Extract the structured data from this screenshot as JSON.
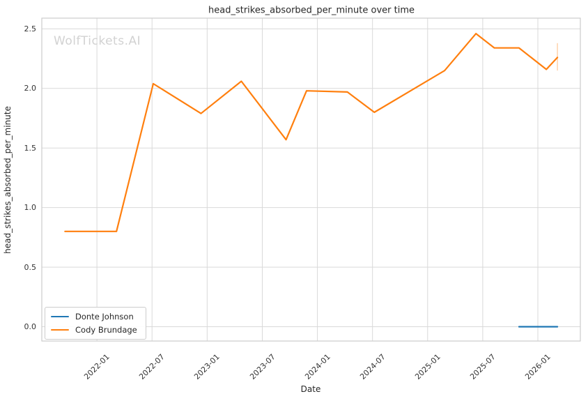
{
  "chart_data": {
    "type": "line",
    "title": "head_strikes_absorbed_per_minute over time",
    "xlabel": "Date",
    "ylabel": "head_strikes_absorbed_per_minute",
    "watermark": "WolfTickets.AI",
    "grid": true,
    "legend_position": "lower-left",
    "x_ticks": [
      "2022-01",
      "2022-07",
      "2023-01",
      "2023-07",
      "2024-01",
      "2024-07",
      "2025-01",
      "2025-07",
      "2026-01"
    ],
    "y_ticks": [
      0.0,
      0.5,
      1.0,
      1.5,
      2.0,
      2.5
    ],
    "y_tick_labels": [
      "0.0",
      "0.5",
      "1.0",
      "1.5",
      "2.0",
      "2.5"
    ],
    "xlim": [
      "2021-07-01",
      "2026-05-20"
    ],
    "ylim": [
      -0.12,
      2.59
    ],
    "series": [
      {
        "name": "Donte Johnson",
        "color": "#1f77b4",
        "points": [
          {
            "date": "2025-10-30",
            "value": 0.0
          },
          {
            "date": "2026-03-05",
            "value": 0.0
          }
        ]
      },
      {
        "name": "Cody Brundage",
        "color": "#ff7f0e",
        "points": [
          {
            "date": "2021-09-17",
            "value": 0.8
          },
          {
            "date": "2022-03-05",
            "value": 0.8
          },
          {
            "date": "2022-07-05",
            "value": 2.04
          },
          {
            "date": "2022-12-11",
            "value": 1.79
          },
          {
            "date": "2023-04-23",
            "value": 2.06
          },
          {
            "date": "2023-09-19",
            "value": 1.57
          },
          {
            "date": "2023-11-26",
            "value": 1.98
          },
          {
            "date": "2024-04-09",
            "value": 1.97
          },
          {
            "date": "2024-07-07",
            "value": 1.8
          },
          {
            "date": "2025-02-27",
            "value": 2.15
          },
          {
            "date": "2025-06-09",
            "value": 2.46
          },
          {
            "date": "2025-08-09",
            "value": 2.34
          },
          {
            "date": "2025-10-30",
            "value": 2.34
          },
          {
            "date": "2026-01-29",
            "value": 2.16
          },
          {
            "date": "2026-03-05",
            "value": 2.26
          }
        ],
        "error_bar": {
          "date": "2026-03-05",
          "low": 2.15,
          "high": 2.38
        }
      }
    ],
    "colors": {
      "grid": "#d9d9d9",
      "spine": "#cccccc",
      "text": "#262626",
      "watermark": "#d2d2d2",
      "background": "#ffffff"
    }
  }
}
